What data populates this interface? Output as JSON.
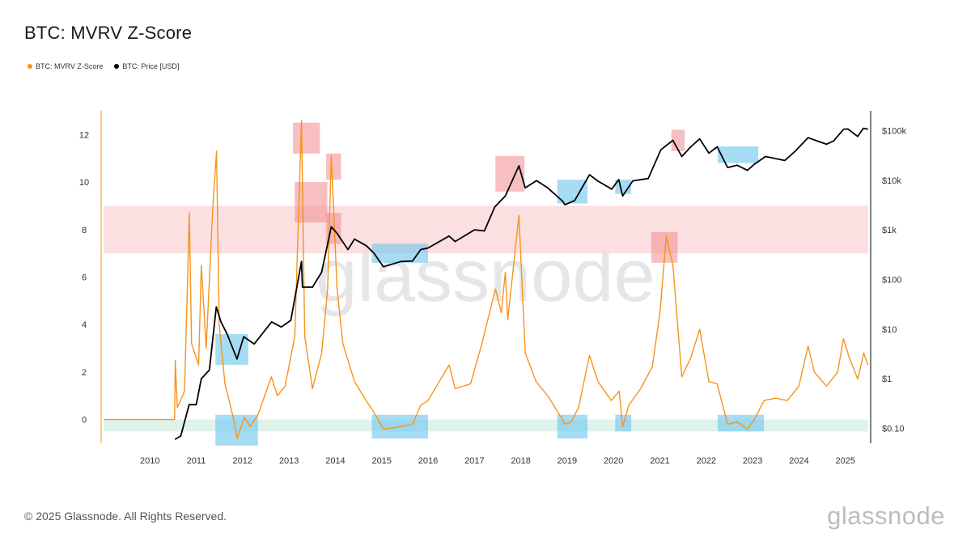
{
  "header": {
    "title": "BTC: MVRV Z-Score"
  },
  "legend": [
    {
      "label": "BTC: MVRV Z-Score",
      "color": "#f7931a"
    },
    {
      "label": "BTC: Price [USD]",
      "color": "#000000"
    }
  ],
  "footer": {
    "copyright": "© 2025 Glassnode. All Rights Reserved.",
    "brand": "glassnode"
  },
  "watermark": "glassnode",
  "chart_data": {
    "type": "line",
    "x_range": [
      "2009-01-01",
      "2025-06-30"
    ],
    "x_ticks": [
      "2010",
      "2011",
      "2012",
      "2013",
      "2014",
      "2015",
      "2016",
      "2017",
      "2018",
      "2019",
      "2020",
      "2021",
      "2022",
      "2023",
      "2024",
      "2025"
    ],
    "y_left": {
      "range": [
        -1,
        13
      ],
      "ticks": [
        0,
        2,
        4,
        6,
        8,
        10,
        12
      ]
    },
    "y_right": {
      "scale": "log",
      "range": [
        0.05,
        250000
      ],
      "ticks": [
        {
          "value": 0.1,
          "label": "$0.10"
        },
        {
          "value": 1,
          "label": "$1"
        },
        {
          "value": 10,
          "label": "$10"
        },
        {
          "value": 100,
          "label": "$100"
        },
        {
          "value": 1000,
          "label": "$1k"
        },
        {
          "value": 10000,
          "label": "$10k"
        },
        {
          "value": 100000,
          "label": "$100k"
        }
      ]
    },
    "bands": [
      {
        "name": "overvalued",
        "y_from": 7,
        "y_to": 9,
        "color": "#fbd9dc"
      },
      {
        "name": "undervalued",
        "y_from": -0.5,
        "y_to": 0,
        "color": "#dbf1e8"
      }
    ],
    "series": [
      {
        "name": "BTC: MVRV Z-Score",
        "axis": "left",
        "color": "#f7931a",
        "points": [
          [
            "2009-01-03",
            0
          ],
          [
            "2010-07-15",
            0
          ],
          [
            "2010-07-20",
            2.5
          ],
          [
            "2010-08-05",
            0.5
          ],
          [
            "2010-10-01",
            1.2
          ],
          [
            "2010-11-08",
            8.7
          ],
          [
            "2010-11-25",
            3.2
          ],
          [
            "2011-01-20",
            2.3
          ],
          [
            "2011-02-10",
            6.5
          ],
          [
            "2011-03-20",
            3.0
          ],
          [
            "2011-05-10",
            8.8
          ],
          [
            "2011-06-10",
            11.3
          ],
          [
            "2011-07-01",
            4.0
          ],
          [
            "2011-08-15",
            1.5
          ],
          [
            "2011-10-15",
            0.2
          ],
          [
            "2011-11-20",
            -0.8
          ],
          [
            "2012-01-15",
            0.1
          ],
          [
            "2012-03-01",
            -0.3
          ],
          [
            "2012-05-01",
            0.2
          ],
          [
            "2012-08-15",
            1.8
          ],
          [
            "2012-10-01",
            1.0
          ],
          [
            "2012-12-01",
            1.4
          ],
          [
            "2013-02-15",
            3.5
          ],
          [
            "2013-04-09",
            12.6
          ],
          [
            "2013-05-05",
            3.5
          ],
          [
            "2013-07-05",
            1.3
          ],
          [
            "2013-09-15",
            2.8
          ],
          [
            "2013-11-01",
            5.5
          ],
          [
            "2013-11-30",
            11.1
          ],
          [
            "2014-01-15",
            5.5
          ],
          [
            "2014-03-01",
            3.2
          ],
          [
            "2014-06-01",
            1.6
          ],
          [
            "2014-09-01",
            0.8
          ],
          [
            "2014-11-01",
            0.3
          ],
          [
            "2015-01-15",
            -0.4
          ],
          [
            "2015-06-01",
            -0.3
          ],
          [
            "2015-09-01",
            -0.2
          ],
          [
            "2015-11-05",
            0.6
          ],
          [
            "2016-01-01",
            0.8
          ],
          [
            "2016-06-15",
            2.3
          ],
          [
            "2016-08-01",
            1.3
          ],
          [
            "2016-12-01",
            1.5
          ],
          [
            "2017-03-01",
            3.2
          ],
          [
            "2017-06-15",
            5.5
          ],
          [
            "2017-08-01",
            4.5
          ],
          [
            "2017-09-01",
            6.2
          ],
          [
            "2017-09-20",
            4.2
          ],
          [
            "2017-12-17",
            8.6
          ],
          [
            "2018-02-05",
            2.8
          ],
          [
            "2018-05-01",
            1.6
          ],
          [
            "2018-08-01",
            1.0
          ],
          [
            "2018-11-25",
            0.0
          ],
          [
            "2018-12-15",
            -0.2
          ],
          [
            "2019-02-01",
            -0.1
          ],
          [
            "2019-04-01",
            0.5
          ],
          [
            "2019-06-26",
            2.7
          ],
          [
            "2019-09-01",
            1.6
          ],
          [
            "2019-12-15",
            0.8
          ],
          [
            "2020-02-15",
            1.2
          ],
          [
            "2020-03-13",
            -0.3
          ],
          [
            "2020-05-01",
            0.6
          ],
          [
            "2020-08-01",
            1.3
          ],
          [
            "2020-11-01",
            2.2
          ],
          [
            "2021-01-01",
            4.5
          ],
          [
            "2021-02-20",
            7.7
          ],
          [
            "2021-04-13",
            6.5
          ],
          [
            "2021-06-22",
            1.8
          ],
          [
            "2021-09-01",
            2.6
          ],
          [
            "2021-11-10",
            3.8
          ],
          [
            "2022-01-22",
            1.6
          ],
          [
            "2022-03-28",
            1.5
          ],
          [
            "2022-06-18",
            -0.2
          ],
          [
            "2022-09-01",
            -0.1
          ],
          [
            "2022-11-20",
            -0.4
          ],
          [
            "2023-01-15",
            0.0
          ],
          [
            "2023-04-01",
            0.8
          ],
          [
            "2023-07-01",
            0.9
          ],
          [
            "2023-10-01",
            0.8
          ],
          [
            "2024-01-01",
            1.4
          ],
          [
            "2024-03-13",
            3.1
          ],
          [
            "2024-05-01",
            2.0
          ],
          [
            "2024-08-05",
            1.4
          ],
          [
            "2024-11-01",
            2.0
          ],
          [
            "2024-12-17",
            3.4
          ],
          [
            "2025-02-01",
            2.6
          ],
          [
            "2025-04-09",
            1.7
          ],
          [
            "2025-05-25",
            2.8
          ],
          [
            "2025-06-28",
            2.3
          ]
        ]
      },
      {
        "name": "BTC: Price [USD]",
        "axis": "right",
        "color": "#000000",
        "points": [
          [
            "2010-07-17",
            0.06
          ],
          [
            "2010-09-01",
            0.07
          ],
          [
            "2010-11-06",
            0.3
          ],
          [
            "2011-01-01",
            0.3
          ],
          [
            "2011-02-10",
            1.0
          ],
          [
            "2011-04-15",
            1.5
          ],
          [
            "2011-06-08",
            28
          ],
          [
            "2011-07-15",
            14
          ],
          [
            "2011-09-01",
            8
          ],
          [
            "2011-11-18",
            2.5
          ],
          [
            "2012-01-10",
            7
          ],
          [
            "2012-04-01",
            5
          ],
          [
            "2012-08-17",
            14
          ],
          [
            "2012-11-01",
            11
          ],
          [
            "2013-01-15",
            15
          ],
          [
            "2013-04-09",
            230
          ],
          [
            "2013-04-17",
            70
          ],
          [
            "2013-07-05",
            70
          ],
          [
            "2013-09-15",
            140
          ],
          [
            "2013-11-30",
            1150
          ],
          [
            "2014-01-15",
            850
          ],
          [
            "2014-04-10",
            400
          ],
          [
            "2014-06-01",
            650
          ],
          [
            "2014-09-01",
            480
          ],
          [
            "2014-11-01",
            340
          ],
          [
            "2015-01-14",
            180
          ],
          [
            "2015-06-01",
            230
          ],
          [
            "2015-09-01",
            235
          ],
          [
            "2015-11-05",
            400
          ],
          [
            "2016-01-01",
            430
          ],
          [
            "2016-06-15",
            750
          ],
          [
            "2016-08-01",
            580
          ],
          [
            "2017-01-01",
            1000
          ],
          [
            "2017-03-20",
            950
          ],
          [
            "2017-06-10",
            2900
          ],
          [
            "2017-09-01",
            4800
          ],
          [
            "2017-12-17",
            19500
          ],
          [
            "2018-02-05",
            7000
          ],
          [
            "2018-05-05",
            9800
          ],
          [
            "2018-08-01",
            7000
          ],
          [
            "2018-11-25",
            3800
          ],
          [
            "2018-12-15",
            3200
          ],
          [
            "2019-03-01",
            3900
          ],
          [
            "2019-06-26",
            12900
          ],
          [
            "2019-09-01",
            9600
          ],
          [
            "2019-12-18",
            6600
          ],
          [
            "2020-02-12",
            10300
          ],
          [
            "2020-03-13",
            4800
          ],
          [
            "2020-06-01",
            9700
          ],
          [
            "2020-10-01",
            10800
          ],
          [
            "2021-01-08",
            41000
          ],
          [
            "2021-04-13",
            63500
          ],
          [
            "2021-06-22",
            30000
          ],
          [
            "2021-09-01",
            47000
          ],
          [
            "2021-11-10",
            68000
          ],
          [
            "2022-01-22",
            35000
          ],
          [
            "2022-03-28",
            47000
          ],
          [
            "2022-06-18",
            18000
          ],
          [
            "2022-09-01",
            20000
          ],
          [
            "2022-11-21",
            15800
          ],
          [
            "2023-01-15",
            21000
          ],
          [
            "2023-04-13",
            30000
          ],
          [
            "2023-09-11",
            25000
          ],
          [
            "2023-12-01",
            38000
          ],
          [
            "2024-03-13",
            72000
          ],
          [
            "2024-08-05",
            53000
          ],
          [
            "2024-10-01",
            62000
          ],
          [
            "2024-12-17",
            106000
          ],
          [
            "2025-01-20",
            108000
          ],
          [
            "2025-04-08",
            76000
          ],
          [
            "2025-05-22",
            111000
          ],
          [
            "2025-06-28",
            107000
          ]
        ]
      }
    ],
    "highlights": {
      "red": [
        [
          "2013-02-15",
          "2013-10-30",
          8.3,
          10.0,
          "left-price"
        ],
        [
          "2013-02-01",
          "2013-09-01",
          11.2,
          12.5,
          "left"
        ],
        [
          "2013-10-20",
          "2014-02-15",
          10.1,
          11.2,
          "left"
        ],
        [
          "2013-10-20",
          "2014-02-15",
          7.4,
          8.7,
          "left"
        ],
        [
          "2017-06-15",
          "2018-01-30",
          9.6,
          11.1,
          "left"
        ],
        [
          "2020-10-25",
          "2021-05-20",
          6.6,
          7.9,
          "left"
        ],
        [
          "2021-04-01",
          "2021-07-15",
          11.3,
          12.2,
          "left"
        ]
      ],
      "blue": [
        [
          "2011-06-01",
          "2012-02-15",
          2.3,
          3.6,
          "left"
        ],
        [
          "2011-06-01",
          "2012-05-01",
          -1.1,
          0.2,
          "left"
        ],
        [
          "2014-10-15",
          "2016-01-01",
          6.6,
          7.4,
          "left"
        ],
        [
          "2014-10-15",
          "2016-01-01",
          -0.8,
          0.2,
          "left"
        ],
        [
          "2018-10-15",
          "2019-06-10",
          9.1,
          10.1,
          "left"
        ],
        [
          "2018-10-15",
          "2019-06-10",
          -0.8,
          0.2,
          "left"
        ],
        [
          "2020-01-15",
          "2020-05-20",
          9.5,
          10.1,
          "left"
        ],
        [
          "2020-01-15",
          "2020-05-20",
          -0.5,
          0.2,
          "left"
        ],
        [
          "2022-04-01",
          "2023-02-15",
          10.8,
          11.5,
          "left"
        ],
        [
          "2022-04-01",
          "2023-04-01",
          -0.5,
          0.2,
          "left"
        ]
      ]
    }
  }
}
